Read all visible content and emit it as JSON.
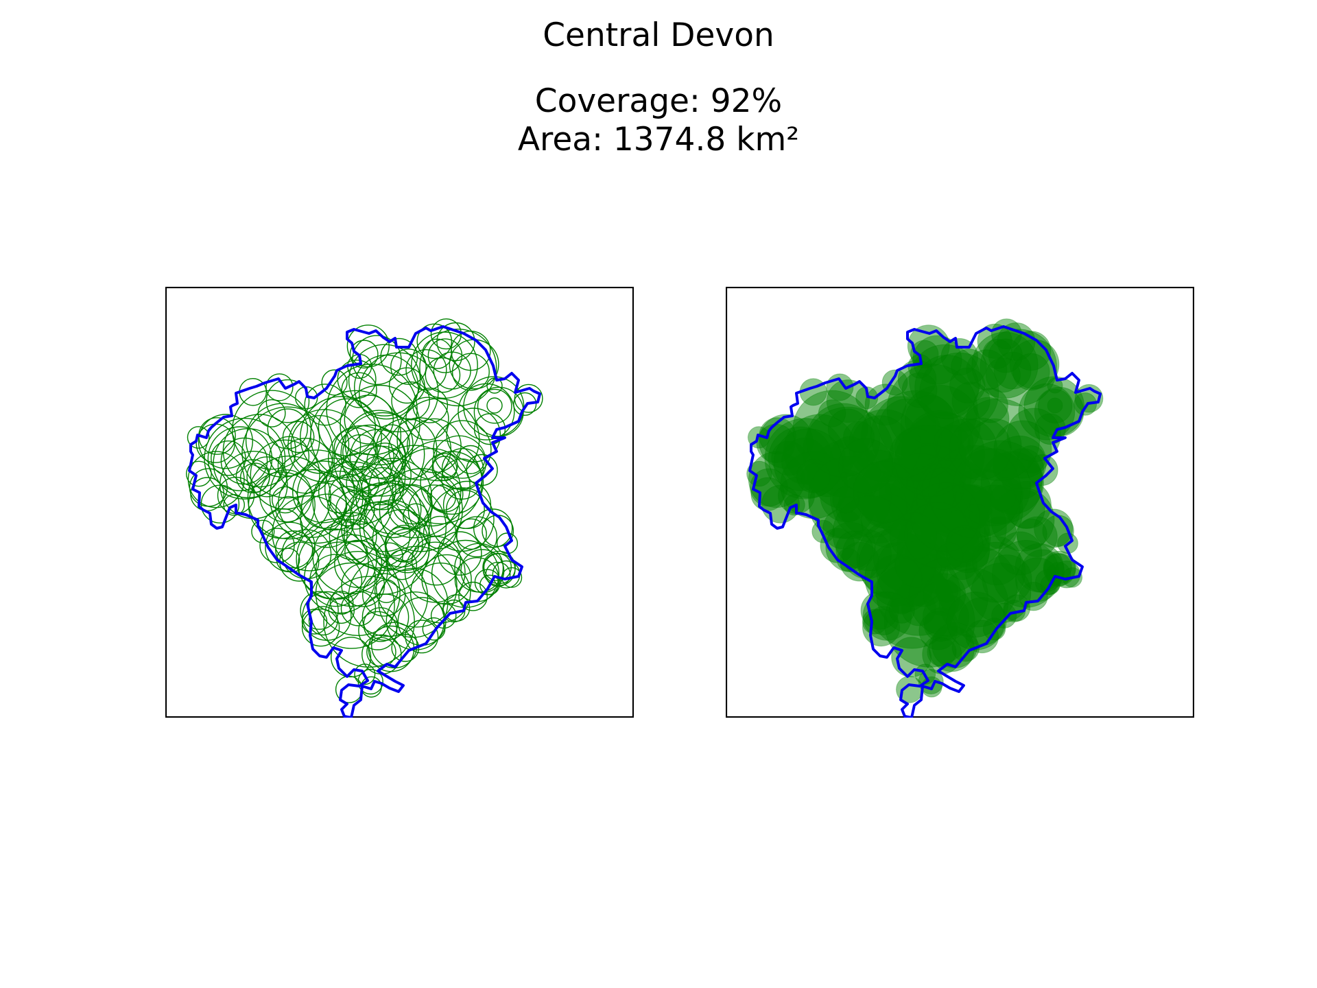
{
  "figure": {
    "title": "Central Devon",
    "coverage_line": "Coverage: 92%",
    "area_line": "Area: 1374.8 km²"
  },
  "colors": {
    "boundary": "#0000ee",
    "circle": "#008000",
    "frame": "#000000",
    "background": "#ffffff"
  },
  "panels": [
    {
      "name": "circle-outlines",
      "style": "outline"
    },
    {
      "name": "circle-fills",
      "style": "filled-translucent"
    }
  ],
  "coverage_percent": 92,
  "area_km2": 1374.8
}
